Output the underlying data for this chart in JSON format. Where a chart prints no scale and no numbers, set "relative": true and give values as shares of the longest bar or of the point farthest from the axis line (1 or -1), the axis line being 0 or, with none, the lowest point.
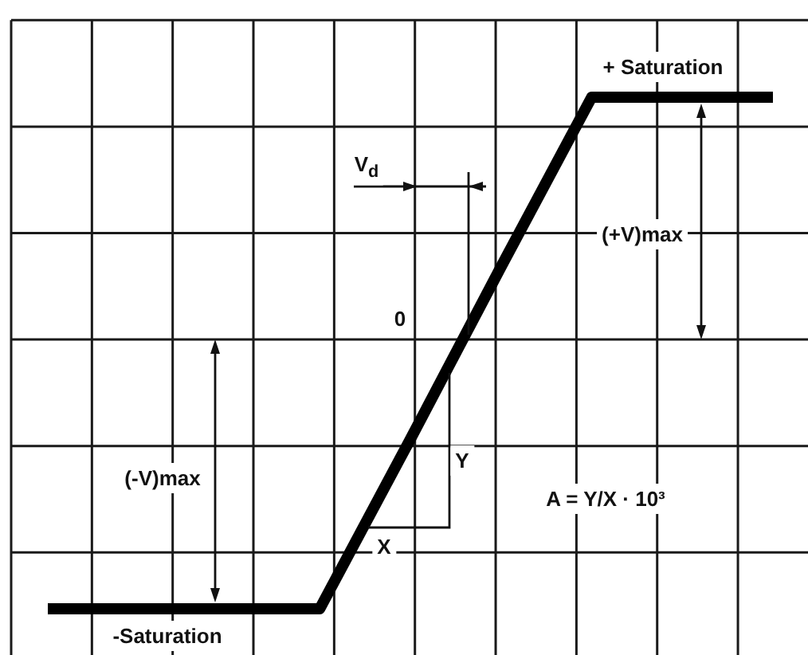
{
  "chart_data": {
    "type": "line",
    "relative": true,
    "grid": true,
    "categories": [
      null,
      null,
      null,
      null,
      null,
      null,
      null,
      null,
      null
    ],
    "series": [
      {
        "color": "#000000",
        "values": [
          -1,
          -1,
          -1,
          -1,
          -0.37,
          0.27,
          0.9,
          0.9,
          0.9
        ]
      }
    ],
    "annotations": [
      "+ Saturation",
      "(+V)max",
      "V$_{d}$",
      "0",
      "(-V)max",
      "-Saturation",
      "Y",
      "X",
      "A = Y/X · 10³"
    ]
  }
}
